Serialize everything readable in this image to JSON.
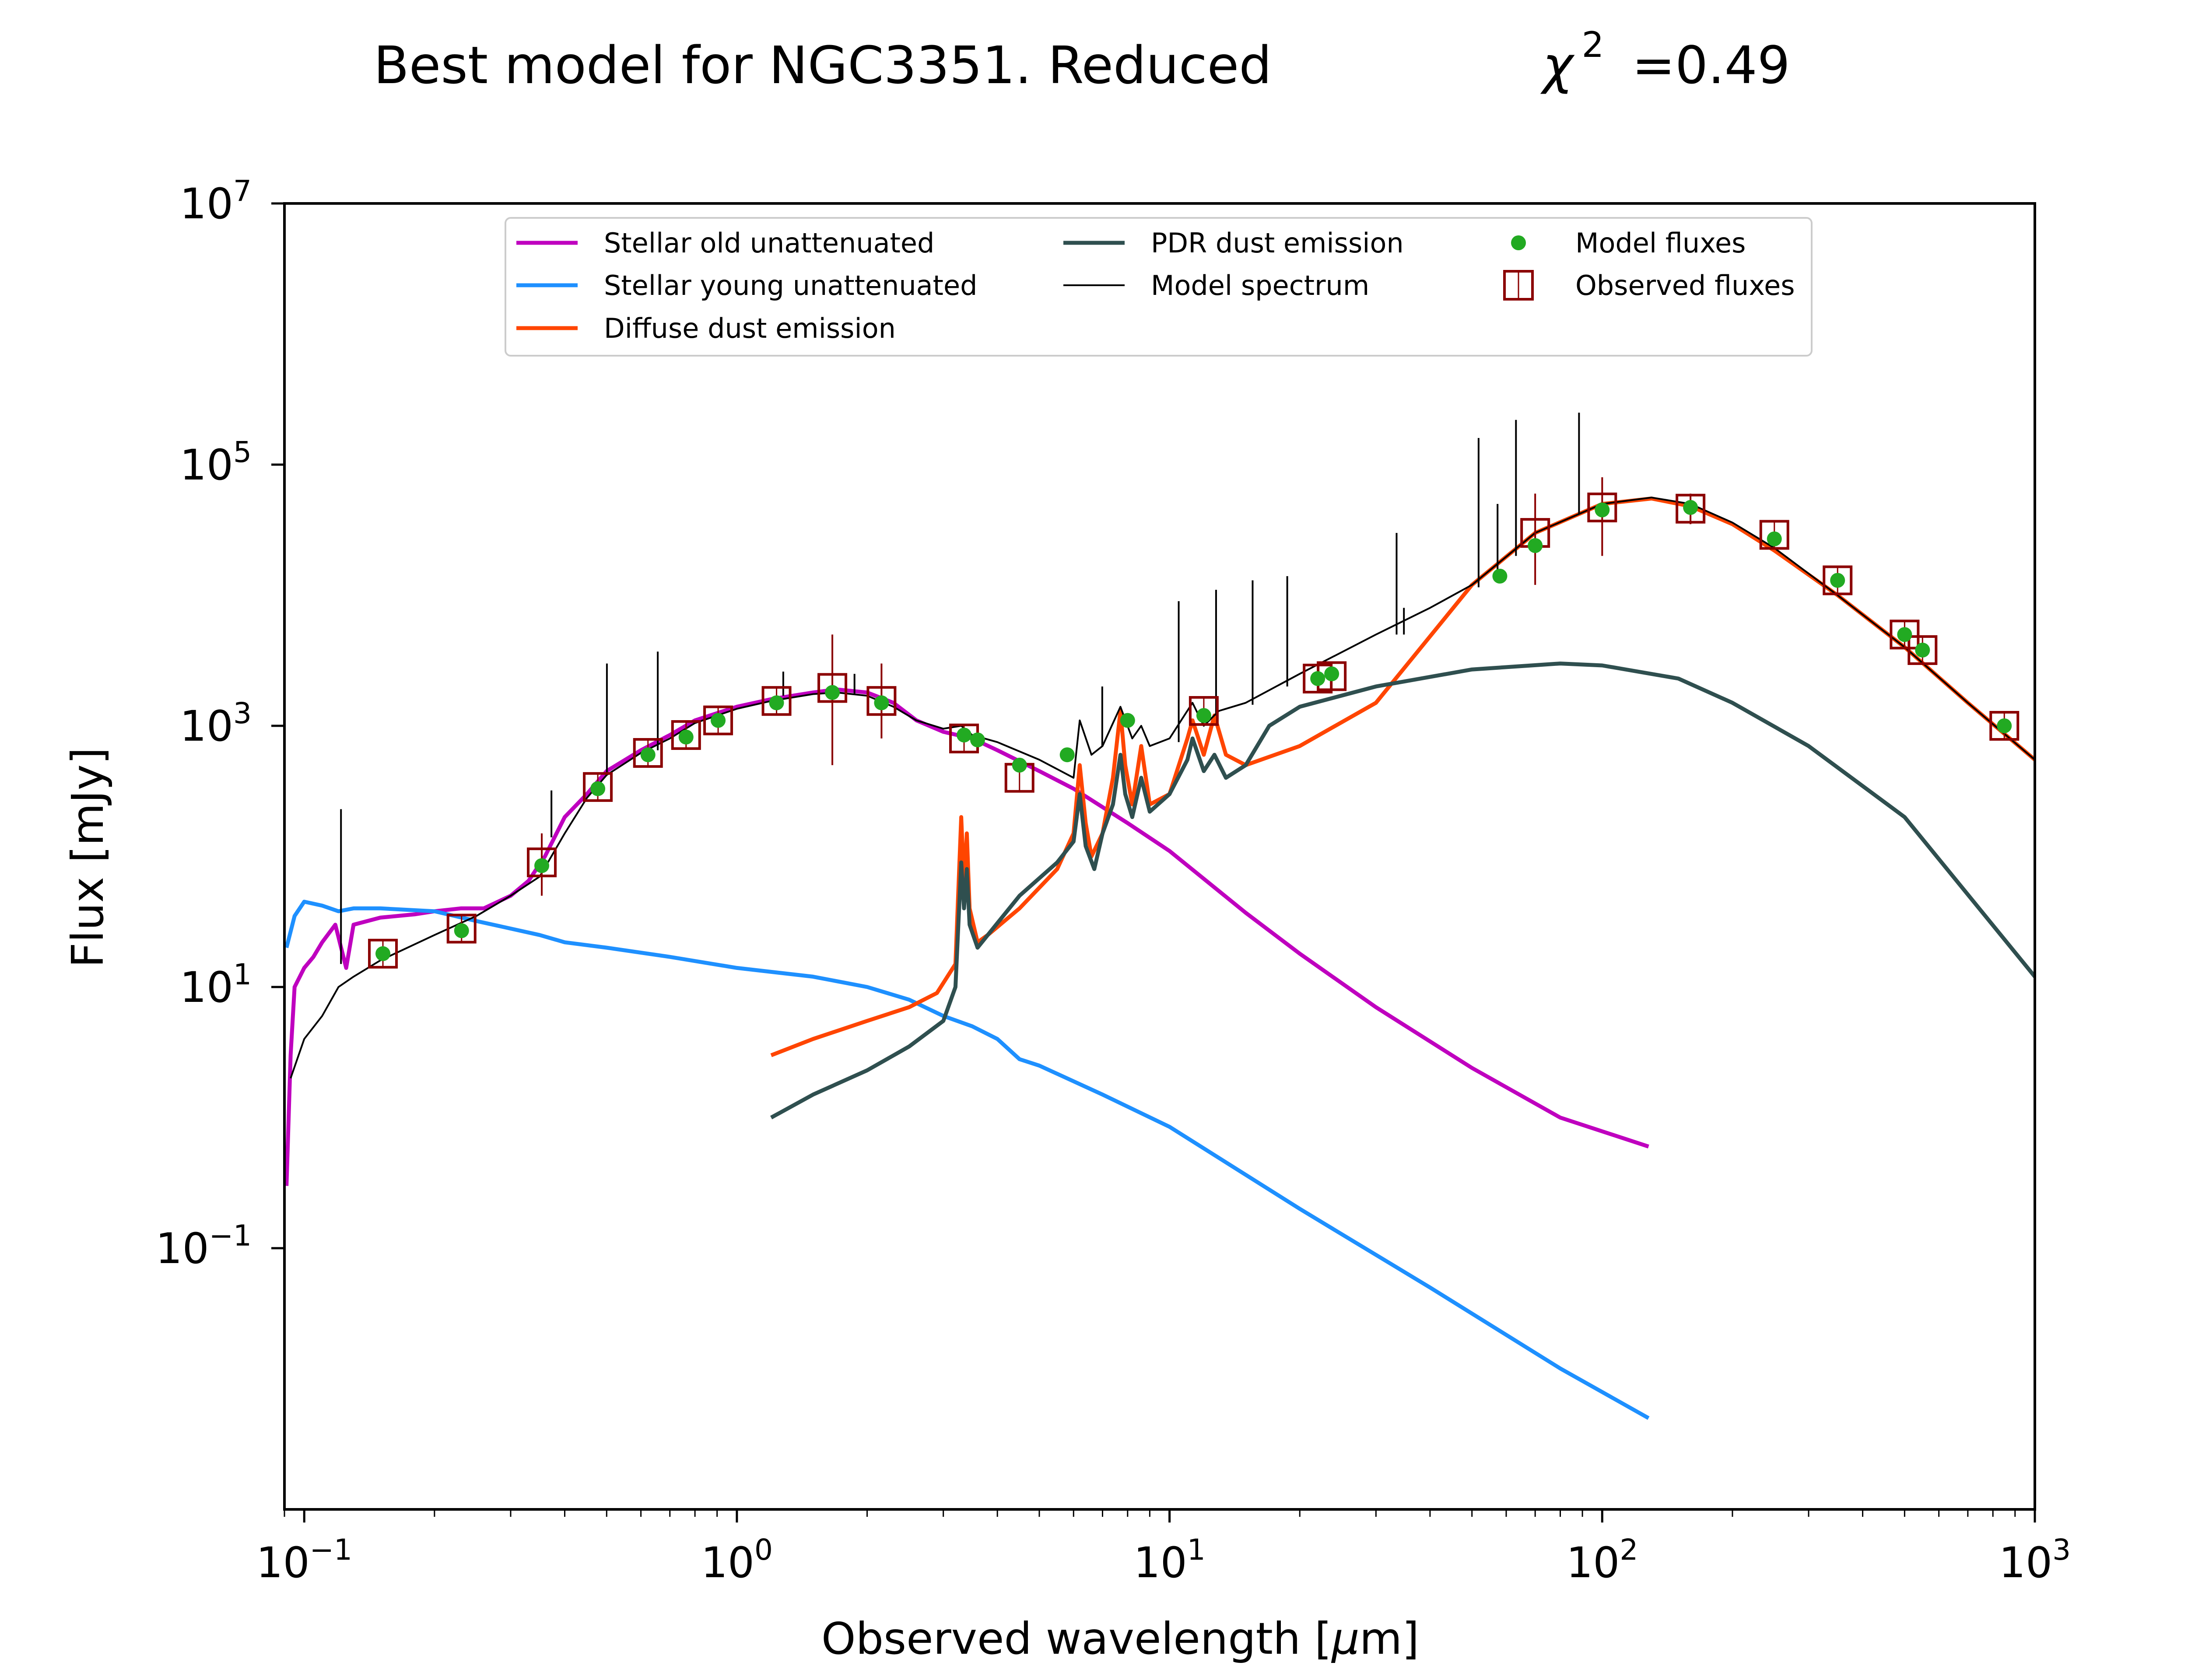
{
  "chart_data": {
    "type": "line",
    "title": "Best model for NGC3351. Reduced",
    "title_chi": "χ",
    "title_chi_sup": "2",
    "title_value": "=0.49",
    "xlabel": "Observed wavelength [",
    "xlabel_mu": "μ",
    "xlabel_unit": "m]",
    "ylabel": "Flux [mJy]",
    "x_scale": "log",
    "y_scale": "log",
    "xlim": [
      0.09,
      1000
    ],
    "ylim": [
      0.001,
      10000000
    ],
    "x_ticks": [
      {
        "value": 0.1,
        "base": "10",
        "exp": "−1"
      },
      {
        "value": 1,
        "base": "10",
        "exp": "0"
      },
      {
        "value": 10,
        "base": "10",
        "exp": "1"
      },
      {
        "value": 100,
        "base": "10",
        "exp": "2"
      },
      {
        "value": 1000,
        "base": "10",
        "exp": "3"
      }
    ],
    "y_ticks": [
      {
        "value": 0.1,
        "base": "10",
        "exp": "−1"
      },
      {
        "value": 10,
        "base": "10",
        "exp": "1"
      },
      {
        "value": 1000,
        "base": "10",
        "exp": "3"
      },
      {
        "value": 100000,
        "base": "10",
        "exp": "5"
      },
      {
        "value": 10000000,
        "base": "10",
        "exp": "7"
      }
    ],
    "grid": false,
    "legend_position": "top-center",
    "series": [
      {
        "name": "Stellar old unattenuated",
        "color": "#bf00bf",
        "x": [
          0.091,
          0.093,
          0.095,
          0.1,
          0.105,
          0.11,
          0.118,
          0.125,
          0.13,
          0.15,
          0.18,
          0.2,
          0.23,
          0.26,
          0.3,
          0.33,
          0.36,
          0.4,
          0.45,
          0.5,
          0.6,
          0.7,
          0.8,
          1.0,
          1.2,
          1.5,
          1.7,
          2.0,
          2.3,
          2.6,
          3.0,
          3.5,
          4.0,
          5.0,
          6.0,
          8.0,
          10.0,
          15.0,
          20.0,
          30.0,
          50.0,
          80.0,
          128.0
        ],
        "y": [
          0.3,
          3.0,
          10.0,
          14.0,
          17.0,
          22.0,
          30.0,
          14.0,
          30.0,
          34.0,
          36.0,
          38.0,
          40.0,
          40.0,
          50.0,
          65.0,
          100.0,
          200.0,
          300.0,
          450.0,
          650.0,
          850.0,
          1100.0,
          1400.0,
          1600.0,
          1800.0,
          1900.0,
          1800.0,
          1500.0,
          1100.0,
          900.0,
          800.0,
          650.0,
          450.0,
          330.0,
          180.0,
          110.0,
          37.0,
          18.0,
          7.0,
          2.4,
          1.0,
          0.6
        ]
      },
      {
        "name": "Stellar young unattenuated",
        "color": "#1e90ff",
        "x": [
          0.091,
          0.095,
          0.1,
          0.11,
          0.12,
          0.13,
          0.15,
          0.2,
          0.25,
          0.3,
          0.35,
          0.4,
          0.5,
          0.7,
          1.0,
          1.5,
          2.0,
          2.5,
          3.0,
          3.5,
          4.0,
          4.5,
          5.0,
          7.0,
          10.0,
          20.0,
          40.0,
          80.0,
          128.0
        ],
        "y": [
          20.0,
          35.0,
          45.0,
          42.0,
          38.0,
          40.0,
          40.0,
          38.0,
          32.0,
          28.0,
          25.0,
          22.0,
          20.0,
          17.0,
          14.0,
          12.0,
          10.0,
          8.0,
          6.0,
          5.0,
          4.0,
          2.8,
          2.5,
          1.5,
          0.85,
          0.2,
          0.05,
          0.012,
          0.005
        ]
      },
      {
        "name": "Diffuse dust emission",
        "color": "#ff4500",
        "x": [
          1.2,
          1.5,
          2.0,
          2.5,
          2.9,
          3.2,
          3.3,
          3.35,
          3.4,
          3.45,
          3.6,
          3.8,
          4.5,
          5.5,
          6.0,
          6.2,
          6.4,
          6.6,
          7.0,
          7.4,
          7.7,
          7.9,
          8.2,
          8.6,
          9.0,
          10.0,
          11.0,
          11.3,
          12.0,
          12.7,
          13.5,
          15.0,
          20.0,
          30.0,
          50.0,
          70.0,
          100.0,
          130.0,
          160.0,
          200.0,
          250.0,
          350.0,
          500.0,
          700.0,
          1000.0
        ],
        "y": [
          3.0,
          4.0,
          5.5,
          7.0,
          9.0,
          15.0,
          200.0,
          60.0,
          150.0,
          40.0,
          22.0,
          25.0,
          40.0,
          80.0,
          150.0,
          500.0,
          180.0,
          100.0,
          150.0,
          400.0,
          1300.0,
          500.0,
          250.0,
          700.0,
          250.0,
          300.0,
          800.0,
          1100.0,
          600.0,
          1200.0,
          600.0,
          500.0,
          700.0,
          1500.0,
          12000.0,
          30000.0,
          50000.0,
          55000.0,
          48000.0,
          35000.0,
          22000.0,
          10000.0,
          4000.0,
          1500.0,
          550.0
        ]
      },
      {
        "name": "PDR dust emission",
        "color": "#2f4f4f",
        "x": [
          1.2,
          1.5,
          2.0,
          2.5,
          3.0,
          3.2,
          3.3,
          3.35,
          3.4,
          3.45,
          3.6,
          3.8,
          4.5,
          5.5,
          6.0,
          6.2,
          6.4,
          6.7,
          7.0,
          7.4,
          7.7,
          7.9,
          8.2,
          8.6,
          9.0,
          10.0,
          11.0,
          11.3,
          12.0,
          12.7,
          13.5,
          15.0,
          17.0,
          20.0,
          30.0,
          50.0,
          80.0,
          100.0,
          150.0,
          200.0,
          300.0,
          500.0,
          1000.0
        ],
        "y": [
          1.0,
          1.5,
          2.3,
          3.5,
          5.5,
          10.0,
          90.0,
          40.0,
          80.0,
          30.0,
          20.0,
          25.0,
          50.0,
          90.0,
          130.0,
          300.0,
          120.0,
          80.0,
          150.0,
          250.0,
          600.0,
          300.0,
          200.0,
          400.0,
          220.0,
          300.0,
          550.0,
          800.0,
          450.0,
          600.0,
          400.0,
          500.0,
          1000.0,
          1400.0,
          2000.0,
          2700.0,
          3000.0,
          2900.0,
          2300.0,
          1500.0,
          700.0,
          200.0,
          12.0
        ]
      },
      {
        "name": "Model spectrum",
        "color": "#000000",
        "x": [
          0.093,
          0.1,
          0.11,
          0.12,
          0.13,
          0.15,
          0.2,
          0.25,
          0.3,
          0.35,
          0.4,
          0.45,
          0.5,
          0.6,
          0.7,
          0.8,
          1.0,
          1.2,
          1.5,
          1.7,
          2.0,
          2.3,
          2.6,
          3.0,
          3.3,
          3.5,
          4.0,
          5.0,
          6.0,
          6.2,
          6.6,
          7.0,
          7.7,
          8.2,
          8.6,
          9.0,
          10.0,
          11.3,
          12.0,
          13.0,
          15.0,
          20.0,
          30.0,
          40.0,
          50.0,
          70.0,
          100.0,
          130.0,
          160.0,
          200.0,
          250.0,
          350.0,
          500.0,
          700.0,
          1000.0
        ],
        "y": [
          2.0,
          4.0,
          6.0,
          10.0,
          12.0,
          16.0,
          25.0,
          35.0,
          50.0,
          70.0,
          150.0,
          280.0,
          420.0,
          620.0,
          800.0,
          1050.0,
          1350.0,
          1550.0,
          1750.0,
          1800.0,
          1700.0,
          1400.0,
          1100.0,
          950.0,
          1000.0,
          850.0,
          750.0,
          550.0,
          400.0,
          1100.0,
          600.0,
          700.0,
          1400.0,
          800.0,
          1000.0,
          700.0,
          800.0,
          1500.0,
          1000.0,
          1300.0,
          1500.0,
          2500.0,
          5000.0,
          8000.0,
          12000.0,
          30000.0,
          50000.0,
          56000.0,
          50000.0,
          36000.0,
          23000.0,
          10000.0,
          4000.0,
          1500.0,
          550.0
        ]
      },
      {
        "name": "Model fluxes",
        "color": "#22aa22",
        "x": [
          0.152,
          0.231,
          0.354,
          0.477,
          0.623,
          0.763,
          0.905,
          1.235,
          1.662,
          2.159,
          3.35,
          3.6,
          4.5,
          5.8,
          8.0,
          12.0,
          22.0,
          23.7,
          58.0,
          70.0,
          100.0,
          160.0,
          250.0,
          350.0,
          500.0,
          550.0,
          850.0
        ],
        "y": [
          18.0,
          27.0,
          85.0,
          330.0,
          600.0,
          820.0,
          1100.0,
          1500.0,
          1800.0,
          1500.0,
          850.0,
          780.0,
          500.0,
          600.0,
          1100.0,
          1200.0,
          2300.0,
          2500.0,
          14000.0,
          24000.0,
          45000.0,
          47000.0,
          27000.0,
          13000.0,
          5000.0,
          3800.0,
          1000.0
        ]
      },
      {
        "name": "Observed fluxes",
        "color": "#8b0000",
        "x": [
          0.152,
          0.231,
          0.354,
          0.477,
          0.623,
          0.763,
          0.905,
          1.235,
          1.662,
          2.159,
          3.35,
          4.5,
          12.0,
          22.0,
          23.7,
          70.0,
          100.0,
          160.0,
          250.0,
          350.0,
          500.0,
          550.0,
          850.0
        ],
        "y": [
          18.0,
          28.0,
          90.0,
          340.0,
          620.0,
          850.0,
          1100.0,
          1550.0,
          1950.0,
          1550.0,
          800.0,
          400.0,
          1300.0,
          2300.0,
          2400.0,
          30000.0,
          47000.0,
          46000.0,
          29000.0,
          13000.0,
          5000.0,
          3800.0,
          1000.0
        ]
      }
    ],
    "emission_lines": [
      {
        "x": 0.1216,
        "y_low": 15.0,
        "y_high": 230.0
      },
      {
        "x": 0.3727,
        "y_low": 140.0,
        "y_high": 320.0
      },
      {
        "x": 0.5007,
        "y_low": 440.0,
        "y_high": 3000.0
      },
      {
        "x": 0.6563,
        "y_low": 650.0,
        "y_high": 3700.0
      },
      {
        "x": 1.28,
        "y_low": 1700.0,
        "y_high": 2600.0
      },
      {
        "x": 1.87,
        "y_low": 1750.0,
        "y_high": 2500.0
      },
      {
        "x": 6.99,
        "y_low": 700.0,
        "y_high": 2000.0
      },
      {
        "x": 10.5,
        "y_low": 750.0,
        "y_high": 9000.0
      },
      {
        "x": 12.81,
        "y_low": 1200.0,
        "y_high": 11000.0
      },
      {
        "x": 15.56,
        "y_low": 1450.0,
        "y_high": 13000.0
      },
      {
        "x": 18.71,
        "y_low": 2000.0,
        "y_high": 14000.0
      },
      {
        "x": 33.48,
        "y_low": 5000.0,
        "y_high": 30000.0
      },
      {
        "x": 34.81,
        "y_low": 5000.0,
        "y_high": 8000.0
      },
      {
        "x": 51.8,
        "y_low": 11500.0,
        "y_high": 160000.0
      },
      {
        "x": 57.3,
        "y_low": 13500.0,
        "y_high": 50000.0
      },
      {
        "x": 63.2,
        "y_low": 20000.0,
        "y_high": 220000.0
      },
      {
        "x": 88.4,
        "y_low": 42000.0,
        "y_high": 250000.0
      }
    ],
    "observed_errors": [
      {
        "x": 1.662,
        "low": 500.0,
        "high": 5000.0
      },
      {
        "x": 2.159,
        "low": 800.0,
        "high": 3000.0
      },
      {
        "x": 0.354,
        "low": 50.0,
        "high": 150.0
      },
      {
        "x": 70.0,
        "low": 12000.0,
        "high": 60000.0
      },
      {
        "x": 100.0,
        "low": 20000.0,
        "high": 80000.0
      },
      {
        "x": 160.0,
        "low": 35000.0,
        "high": 60000.0
      }
    ]
  }
}
